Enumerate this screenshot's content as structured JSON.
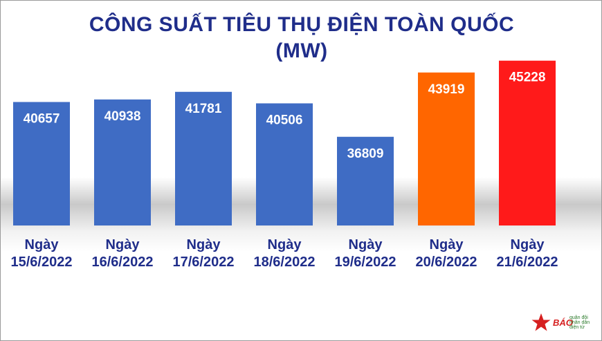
{
  "title_line1": "CÔNG SUẤT TIÊU THỤ ĐIỆN TOÀN QUỐC",
  "title_line2": "(MW)",
  "chart_data": {
    "type": "bar",
    "title": "CÔNG SUẤT TIÊU THỤ ĐIỆN TOÀN QUỐC (MW)",
    "categories": [
      [
        "Ngày",
        "15/6/2022"
      ],
      [
        "Ngày",
        "16/6/2022"
      ],
      [
        "Ngày",
        "17/6/2022"
      ],
      [
        "Ngày",
        "18/6/2022"
      ],
      [
        "Ngày",
        "19/6/2022"
      ],
      [
        "Ngày",
        "20/6/2022"
      ],
      [
        "Ngày",
        "21/6/2022"
      ]
    ],
    "values": [
      40657,
      40938,
      41781,
      40506,
      36809,
      43919,
      45228
    ],
    "data_labels": [
      "40657",
      "40938",
      "41781",
      "40506",
      "36809",
      "43919",
      "45228"
    ],
    "bar_colors": [
      "#3f6cc4",
      "#3f6cc4",
      "#3f6cc4",
      "#3f6cc4",
      "#3f6cc4",
      "#ff6600",
      "#ff1a1a"
    ],
    "label_color": "#1f2d8a",
    "ylim": [
      27000,
      46200
    ],
    "grid": false,
    "legend": "none"
  },
  "logo": {
    "brand": "BÁO",
    "sub": [
      "quân đội",
      "nhân dân",
      "điện tử"
    ],
    "star_color": "#d62020"
  }
}
